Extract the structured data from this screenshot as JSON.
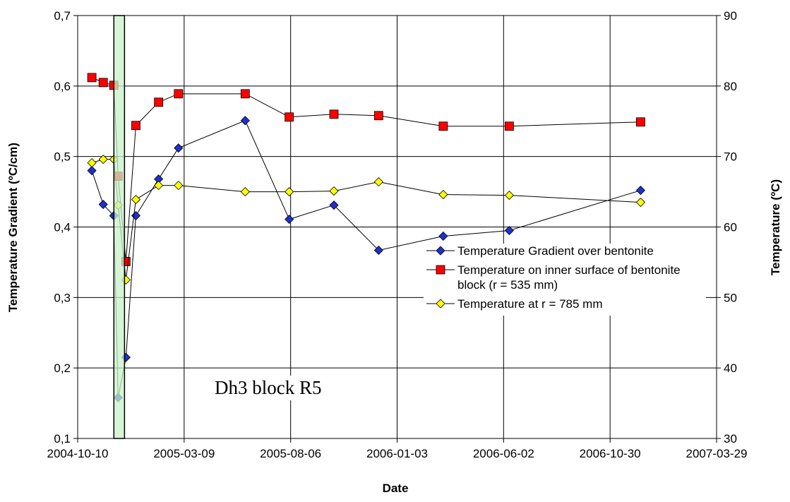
{
  "chart_data": {
    "type": "line",
    "x_label": "Date",
    "y_label": "Temperature Gradient (ºC/cm)",
    "y2_label": "Temperature (ºC)",
    "annotation": "Dh3 block R5",
    "x": [
      "2004-10-30",
      "2004-11-15",
      "2004-11-30",
      "2004-12-06",
      "2004-12-17",
      "2004-12-31",
      "2005-02-01",
      "2005-03-01",
      "2005-06-03",
      "2005-08-04",
      "2005-10-06",
      "2005-12-08",
      "2006-03-09",
      "2006-06-10",
      "2006-12-12"
    ],
    "series": [
      {
        "name": "Temperature Gradient over bentonite",
        "color": "#1f2fd0",
        "marker": "diamond",
        "axis": "y",
        "values": [
          0.48,
          0.432,
          0.416,
          0.158,
          0.215,
          0.416,
          0.468,
          0.512,
          0.551,
          0.411,
          0.431,
          0.367,
          0.387,
          0.395,
          0.452
        ]
      },
      {
        "name": "Temperature on inner surface of bentonite block (r = 535 mm)",
        "color": "#ff0000",
        "marker": "square",
        "axis": "y2",
        "values": [
          81.2,
          80.5,
          80.1,
          67.2,
          55.1,
          74.4,
          77.7,
          78.9,
          78.9,
          75.6,
          76.0,
          75.8,
          74.3,
          74.3,
          74.9
        ]
      },
      {
        "name": "Temperature at r = 785 mm",
        "color": "#ffff00",
        "marker": "diamond",
        "axis": "y2",
        "values": [
          69.1,
          69.6,
          69.6,
          63.1,
          52.5,
          63.9,
          65.9,
          65.9,
          65.0,
          65.0,
          65.1,
          66.4,
          64.6,
          64.5,
          63.5
        ]
      }
    ],
    "shaded_range": [
      "2004-11-30",
      "2004-12-15"
    ],
    "shaded_color": "#c8f0c8",
    "xlim": [
      "2004-10-10",
      "2007-03-29"
    ],
    "xticks": [
      "2004-10-10",
      "2005-03-09",
      "2005-08-06",
      "2006-01-03",
      "2006-06-02",
      "2006-10-30",
      "2007-03-29"
    ],
    "ylim": [
      0.1,
      0.7
    ],
    "yticks": [
      {
        "value": 0.1,
        "label": "0,1"
      },
      {
        "value": 0.2,
        "label": "0,2"
      },
      {
        "value": 0.3,
        "label": "0,3"
      },
      {
        "value": 0.4,
        "label": "0,4"
      },
      {
        "value": 0.5,
        "label": "0,5"
      },
      {
        "value": 0.6,
        "label": "0,6"
      },
      {
        "value": 0.7,
        "label": "0,7"
      }
    ],
    "y2lim": [
      30,
      90
    ],
    "y2ticks": [
      30,
      40,
      50,
      60,
      70,
      80,
      90
    ],
    "grid": true
  }
}
